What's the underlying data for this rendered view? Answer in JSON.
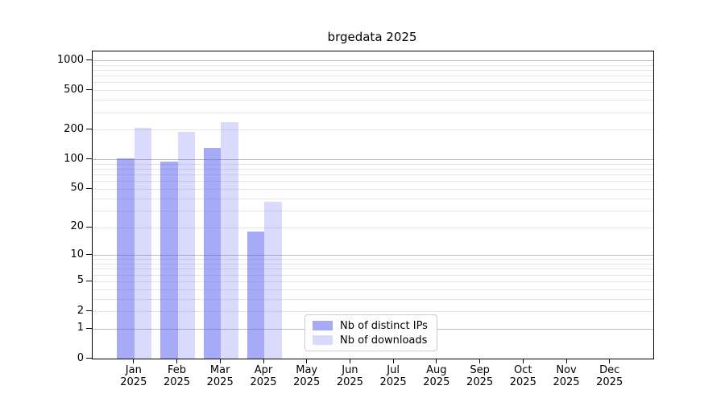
{
  "figure": {
    "background": "#ffffff"
  },
  "chart_data": {
    "type": "bar",
    "title": "brgedata 2025",
    "categories": [
      "Jan",
      "Feb",
      "Mar",
      "Apr",
      "May",
      "Jun",
      "Jul",
      "Aug",
      "Sep",
      "Oct",
      "Nov",
      "Dec"
    ],
    "year_label": "2025",
    "series": [
      {
        "name": "Nb of distinct IPs",
        "base_color": "#5055f0",
        "alpha": 0.5,
        "blended_color": "#a8aaf7",
        "values": [
          103,
          95,
          130,
          18,
          0,
          0,
          0,
          0,
          0,
          0,
          0,
          0
        ]
      },
      {
        "name": "Nb of downloads",
        "base_color": "#5055f0",
        "alpha": 0.22,
        "blended_color": "#d8dafb",
        "values": [
          210,
          190,
          240,
          37,
          0,
          0,
          0,
          0,
          0,
          0,
          0,
          0
        ]
      }
    ],
    "xlabel": "",
    "ylabel": "",
    "yscale": "symlog-log1p",
    "yticks": [
      0,
      1,
      2,
      5,
      10,
      20,
      50,
      100,
      200,
      500,
      1000
    ],
    "ylim": [
      0,
      1228
    ],
    "grid": {
      "axis": "y",
      "major_at": [
        1,
        10,
        100,
        1000
      ],
      "minor_per_decade": [
        2,
        3,
        4,
        5,
        6,
        7,
        8,
        9
      ],
      "major_color": "#bdbdbd",
      "minor_color": "#e6e6e6"
    },
    "legend": {
      "position": "lower-center-inside",
      "border_color": "#cccccc"
    }
  }
}
